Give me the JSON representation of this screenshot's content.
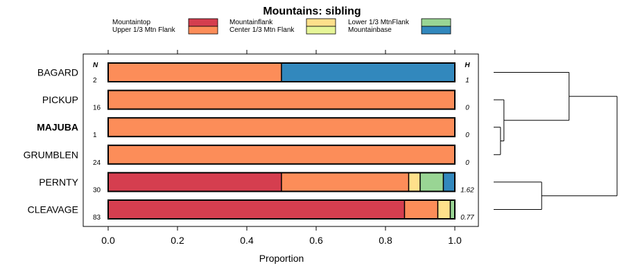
{
  "chart_data": {
    "type": "bar",
    "title": "Mountains: sibling",
    "xlabel": "Proportion",
    "xlim": [
      0,
      1
    ],
    "x_ticks": [
      "0.0",
      "0.2",
      "0.4",
      "0.6",
      "0.8",
      "1.0"
    ],
    "n_header": "N",
    "h_header": "H",
    "legend": [
      {
        "name": "Mountaintop",
        "color": "#d53e4f"
      },
      {
        "name": "Upper 1/3 Mtn Flank",
        "color": "#fc8d59"
      },
      {
        "name": "Mountainflank",
        "color": "#fee08b"
      },
      {
        "name": "Center 1/3 Mtn Flank",
        "color": "#e6f598"
      },
      {
        "name": "Lower 1/3 MtnFlank",
        "color": "#99d594"
      },
      {
        "name": "Mountainbase",
        "color": "#3288bd"
      }
    ],
    "rows": [
      {
        "label": "BAGARD",
        "bold": false,
        "n": "2",
        "h": "1",
        "segments": [
          {
            "cat": "Upper 1/3 Mtn Flank",
            "value": 0.5
          },
          {
            "cat": "Mountainbase",
            "value": 0.5
          }
        ]
      },
      {
        "label": "PICKUP",
        "bold": false,
        "n": "16",
        "h": "0",
        "segments": [
          {
            "cat": "Upper 1/3 Mtn Flank",
            "value": 1.0
          }
        ]
      },
      {
        "label": "MAJUBA",
        "bold": true,
        "n": "1",
        "h": "0",
        "segments": [
          {
            "cat": "Upper 1/3 Mtn Flank",
            "value": 1.0
          }
        ]
      },
      {
        "label": "GRUMBLEN",
        "bold": false,
        "n": "24",
        "h": "0",
        "segments": [
          {
            "cat": "Upper 1/3 Mtn Flank",
            "value": 1.0
          }
        ]
      },
      {
        "label": "PERNTY",
        "bold": false,
        "n": "30",
        "h": "1.62",
        "segments": [
          {
            "cat": "Mountaintop",
            "value": 0.5
          },
          {
            "cat": "Upper 1/3 Mtn Flank",
            "value": 0.367
          },
          {
            "cat": "Mountainflank",
            "value": 0.033
          },
          {
            "cat": "Lower 1/3 MtnFlank",
            "value": 0.067
          },
          {
            "cat": "Mountainbase",
            "value": 0.033
          }
        ]
      },
      {
        "label": "CLEAVAGE",
        "bold": false,
        "n": "83",
        "h": "0.77",
        "segments": [
          {
            "cat": "Mountaintop",
            "value": 0.855
          },
          {
            "cat": "Upper 1/3 Mtn Flank",
            "value": 0.096
          },
          {
            "cat": "Mountainflank",
            "value": 0.036
          },
          {
            "cat": "Lower 1/3 MtnFlank",
            "value": 0.013
          }
        ]
      }
    ],
    "dendrogram": {
      "leaves": [
        "BAGARD",
        "PICKUP",
        "MAJUBA",
        "GRUMBLEN",
        "PERNTY",
        "CLEAVAGE"
      ],
      "merges": [
        {
          "a": "MAJUBA",
          "b": "GRUMBLEN",
          "height": 0.02
        },
        {
          "a": "PICKUP",
          "b": "MAJUBA+GRUMBLEN",
          "height": 0.03
        },
        {
          "a": "PERNTY",
          "b": "CLEAVAGE",
          "height": 0.14
        },
        {
          "a": "BAGARD",
          "b": "PICKUP+MAJUBA+GRUMBLEN",
          "height": 0.22
        },
        {
          "a": "BAGARD+PICKUP+MAJUBA+GRUMBLEN",
          "b": "PERNTY+CLEAVAGE",
          "height": 0.36
        }
      ]
    }
  }
}
